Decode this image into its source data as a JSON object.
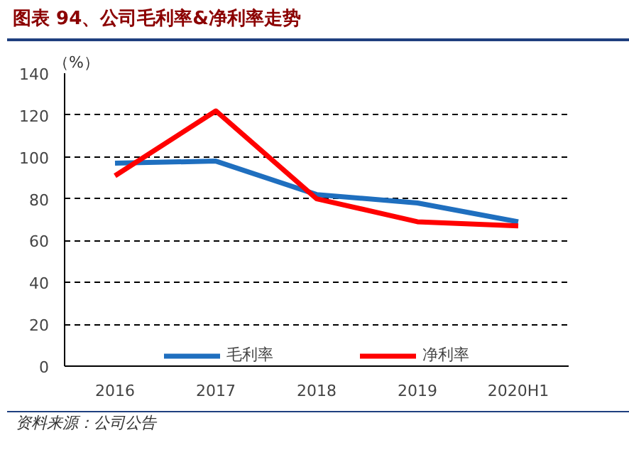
{
  "chart_data": {
    "type": "line",
    "title": "图表 94、公司毛利率&净利率走势",
    "ylabel": "（%）",
    "categories": [
      "2016",
      "2017",
      "2018",
      "2019",
      "2020H1"
    ],
    "series": [
      {
        "name": "毛利率",
        "color": "#1f6fbf",
        "values": [
          97,
          98,
          82,
          78,
          69
        ]
      },
      {
        "name": "净利率",
        "color": "#ff0000",
        "values": [
          91,
          122,
          80,
          69,
          67
        ]
      }
    ],
    "ylim": [
      0,
      140
    ],
    "yticks": [
      0,
      20,
      40,
      60,
      80,
      100,
      120,
      140
    ],
    "grid": "y",
    "legend": "bottom",
    "marker": "none",
    "line_style": "solid",
    "annotations": [
      "资料来源：公司公告"
    ]
  }
}
